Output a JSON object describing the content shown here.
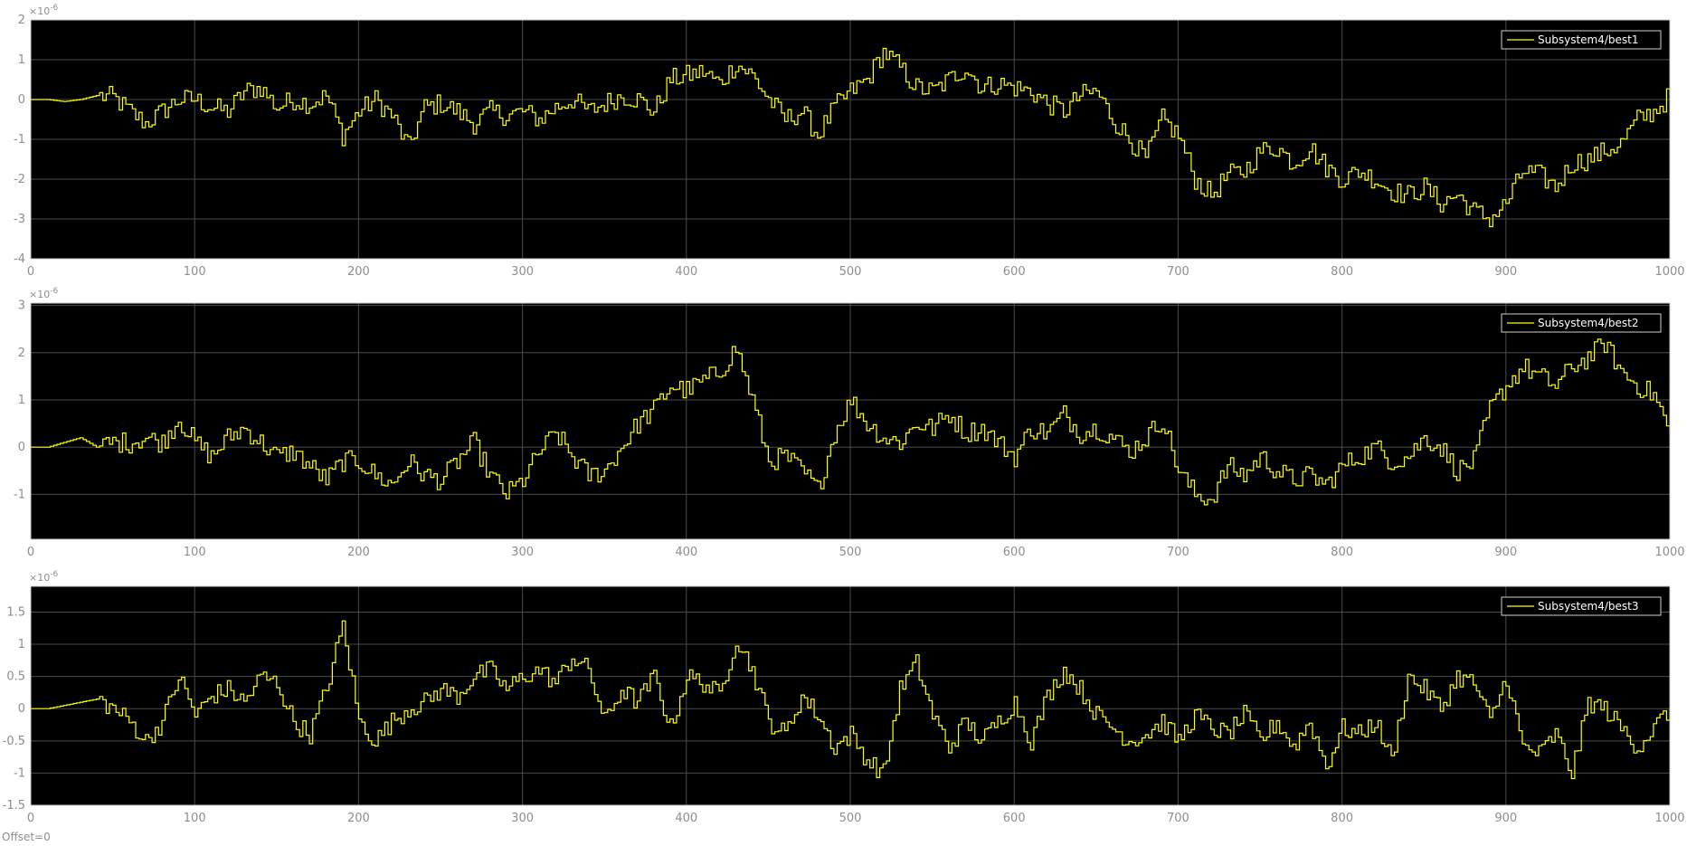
{
  "footer": {
    "offset_label": "Offset=0"
  },
  "colors": {
    "background": "#000000",
    "trace": "#ffff00",
    "grid": "#4a4a4a",
    "tick_text": "#8e8e8e",
    "legend_text": "#ffffff"
  },
  "chart_data": [
    {
      "type": "line",
      "exponent_label": "×10",
      "exponent_value": "-6",
      "xlim": [
        0,
        1000
      ],
      "ylim": [
        -4,
        2
      ],
      "xticks": [
        0,
        100,
        200,
        300,
        400,
        500,
        600,
        700,
        800,
        900,
        1000
      ],
      "yticks": [
        -4,
        -3,
        -2,
        -1,
        0,
        1,
        2
      ],
      "ytick_labels": [
        "-4",
        "-3",
        "-2",
        "-1",
        "0",
        "1",
        "2"
      ],
      "grid": true,
      "legend_position": "top-right",
      "series": [
        {
          "name": "Subsystem4/best1",
          "x": [
            0,
            10,
            20,
            30,
            40,
            50,
            60,
            70,
            80,
            90,
            100,
            110,
            120,
            130,
            140,
            150,
            160,
            170,
            180,
            190,
            200,
            210,
            220,
            230,
            240,
            250,
            260,
            270,
            280,
            290,
            300,
            310,
            320,
            330,
            340,
            350,
            360,
            370,
            380,
            390,
            400,
            410,
            420,
            430,
            440,
            450,
            460,
            470,
            480,
            490,
            500,
            510,
            520,
            530,
            540,
            550,
            560,
            570,
            580,
            590,
            600,
            610,
            620,
            630,
            640,
            650,
            660,
            670,
            680,
            690,
            700,
            710,
            720,
            730,
            740,
            750,
            760,
            770,
            780,
            790,
            800,
            810,
            820,
            830,
            840,
            850,
            860,
            870,
            880,
            890,
            900,
            910,
            920,
            930,
            940,
            950,
            960,
            970,
            980,
            990,
            1000
          ],
          "y": [
            0,
            0,
            -0.05,
            0,
            0.1,
            0.05,
            -0.3,
            -0.6,
            -0.3,
            0,
            0,
            -0.2,
            -0.3,
            0.2,
            0.3,
            -0.2,
            0,
            -0.1,
            0.1,
            -0.9,
            -0.3,
            0,
            -0.4,
            -1.2,
            -0.2,
            -0.1,
            -0.3,
            -0.6,
            -0.3,
            -0.4,
            -0.3,
            -0.5,
            -0.2,
            0,
            -0.3,
            -0.1,
            0.1,
            0,
            -0.3,
            0.5,
            0.6,
            0.7,
            0.4,
            0.9,
            0.6,
            0,
            -0.5,
            -0.3,
            -0.9,
            -0.2,
            0.2,
            0.5,
            1.2,
            0.8,
            0.3,
            0.2,
            0.5,
            0.8,
            0.3,
            0.4,
            0.3,
            0.2,
            -0.1,
            -0.3,
            0.1,
            0.2,
            -0.5,
            -1,
            -1.5,
            -0.5,
            -0.9,
            -2,
            -2.4,
            -1.9,
            -1.8,
            -1.3,
            -1.2,
            -1.6,
            -1.2,
            -1.7,
            -2,
            -1.8,
            -2,
            -2.3,
            -2.4,
            -2.2,
            -2.6,
            -2.4,
            -2.8,
            -3,
            -2.6,
            -1.8,
            -1.9,
            -2.2,
            -1.6,
            -1.5,
            -1.3,
            -1.1,
            -0.5,
            -0.3,
            0.1
          ]
        }
      ]
    },
    {
      "type": "line",
      "exponent_label": "×10",
      "exponent_value": "-6",
      "xlim": [
        0,
        1000
      ],
      "ylim": [
        -1.95,
        3.05
      ],
      "xticks": [
        0,
        100,
        200,
        300,
        400,
        500,
        600,
        700,
        800,
        900,
        1000
      ],
      "yticks": [
        -1,
        0,
        1,
        2,
        3
      ],
      "ytick_labels": [
        "-1",
        "0",
        "1",
        "2",
        "3"
      ],
      "grid": true,
      "legend_position": "top-right",
      "series": [
        {
          "name": "Subsystem4/best2",
          "x": [
            0,
            10,
            20,
            30,
            40,
            50,
            60,
            70,
            80,
            90,
            100,
            110,
            120,
            130,
            140,
            150,
            160,
            170,
            180,
            190,
            200,
            210,
            220,
            230,
            240,
            250,
            260,
            270,
            280,
            290,
            300,
            310,
            320,
            330,
            340,
            350,
            360,
            370,
            380,
            390,
            400,
            410,
            420,
            430,
            440,
            450,
            460,
            470,
            480,
            490,
            500,
            510,
            520,
            530,
            540,
            550,
            560,
            570,
            580,
            590,
            600,
            610,
            620,
            630,
            640,
            650,
            660,
            670,
            680,
            690,
            700,
            710,
            720,
            730,
            740,
            750,
            760,
            770,
            780,
            790,
            800,
            810,
            820,
            830,
            840,
            850,
            860,
            870,
            880,
            890,
            900,
            910,
            920,
            930,
            940,
            950,
            960,
            970,
            980,
            990,
            1000
          ],
          "y": [
            0,
            0,
            0.1,
            0.2,
            0,
            0.1,
            0.1,
            0.2,
            0.1,
            0.6,
            0.1,
            -0.2,
            0.2,
            0.4,
            0.1,
            -0.2,
            -0.1,
            -0.4,
            -0.7,
            -0.3,
            -0.3,
            -0.6,
            -0.8,
            -0.3,
            -0.6,
            -0.7,
            -0.3,
            0.1,
            -0.6,
            -1,
            -0.7,
            -0.1,
            0.3,
            -0.2,
            -0.6,
            -0.5,
            0,
            0.5,
            0.8,
            1.3,
            1.2,
            1.4,
            1.6,
            2.1,
            1,
            -0.3,
            -0.2,
            -0.5,
            -0.9,
            0.3,
            1,
            0.5,
            0.2,
            0.1,
            0.5,
            0.4,
            0.7,
            0.3,
            0.4,
            0.1,
            -0.2,
            0.4,
            0.3,
            0.7,
            0.3,
            0.4,
            0.2,
            -0.1,
            0.2,
            0.6,
            -0.5,
            -1,
            -1.1,
            -0.4,
            -0.6,
            -0.2,
            -0.5,
            -0.7,
            -0.6,
            -0.8,
            -0.4,
            -0.2,
            0,
            -0.3,
            -0.2,
            0.2,
            0,
            -0.5,
            -0.3,
            0.8,
            1.3,
            1.7,
            1.5,
            1.3,
            1.7,
            1.9,
            2.2,
            1.6,
            1.3,
            1.1,
            0.3
          ]
        }
      ]
    },
    {
      "type": "line",
      "exponent_label": "×10",
      "exponent_value": "-6",
      "xlim": [
        0,
        1000
      ],
      "ylim": [
        -1.5,
        1.9
      ],
      "xticks": [
        0,
        100,
        200,
        300,
        400,
        500,
        600,
        700,
        800,
        900,
        1000
      ],
      "yticks": [
        -1.5,
        -1,
        -0.5,
        0,
        0.5,
        1,
        1.5
      ],
      "ytick_labels": [
        "-1.5",
        "-1",
        "-0.5",
        "0",
        "0.5",
        "1",
        "1.5"
      ],
      "grid": true,
      "legend_position": "top-right",
      "series": [
        {
          "name": "Subsystem4/best3",
          "x": [
            0,
            10,
            20,
            30,
            40,
            50,
            60,
            70,
            80,
            90,
            100,
            110,
            120,
            130,
            140,
            150,
            160,
            170,
            180,
            190,
            200,
            210,
            220,
            230,
            240,
            250,
            260,
            270,
            280,
            290,
            300,
            310,
            320,
            330,
            340,
            350,
            360,
            370,
            380,
            390,
            400,
            410,
            420,
            430,
            440,
            450,
            460,
            470,
            480,
            490,
            500,
            510,
            520,
            530,
            540,
            550,
            560,
            570,
            580,
            590,
            600,
            610,
            620,
            630,
            640,
            650,
            660,
            670,
            680,
            690,
            700,
            710,
            720,
            730,
            740,
            750,
            760,
            770,
            780,
            790,
            800,
            810,
            820,
            830,
            840,
            850,
            860,
            870,
            880,
            890,
            900,
            910,
            920,
            930,
            940,
            950,
            960,
            970,
            980,
            990,
            1000
          ],
          "y": [
            0,
            0,
            0.05,
            0.1,
            0.15,
            0,
            -0.2,
            -0.5,
            -0.2,
            0.5,
            -0.1,
            0.2,
            0.3,
            0.1,
            0.5,
            0.4,
            -0.2,
            -0.4,
            0.3,
            1.3,
            -0.2,
            -0.5,
            -0.2,
            0,
            0.1,
            0.3,
            0.2,
            0.5,
            0.6,
            0.3,
            0.5,
            0.6,
            0.4,
            0.8,
            0.6,
            -0.2,
            0.3,
            0.1,
            0.5,
            -0.3,
            0.5,
            0.4,
            0.2,
            1.1,
            0.6,
            -0.2,
            -0.4,
            0.2,
            -0.1,
            -0.6,
            -0.4,
            -0.8,
            -1,
            0.3,
            0.7,
            -0.1,
            -0.6,
            -0.2,
            -0.5,
            -0.2,
            0.1,
            -0.5,
            0.2,
            0.6,
            0.3,
            -0.1,
            -0.3,
            -0.5,
            -0.4,
            -0.2,
            -0.5,
            -0.1,
            -0.3,
            -0.4,
            -0.1,
            -0.5,
            -0.2,
            -0.6,
            -0.2,
            -0.9,
            -0.3,
            -0.4,
            -0.2,
            -0.8,
            0.5,
            0.3,
            0,
            0.5,
            0.4,
            -0.2,
            0.5,
            -0.6,
            -0.7,
            -0.4,
            -1,
            0.1,
            0,
            -0.3,
            -0.6,
            -0.3,
            0
          ]
        }
      ]
    }
  ]
}
